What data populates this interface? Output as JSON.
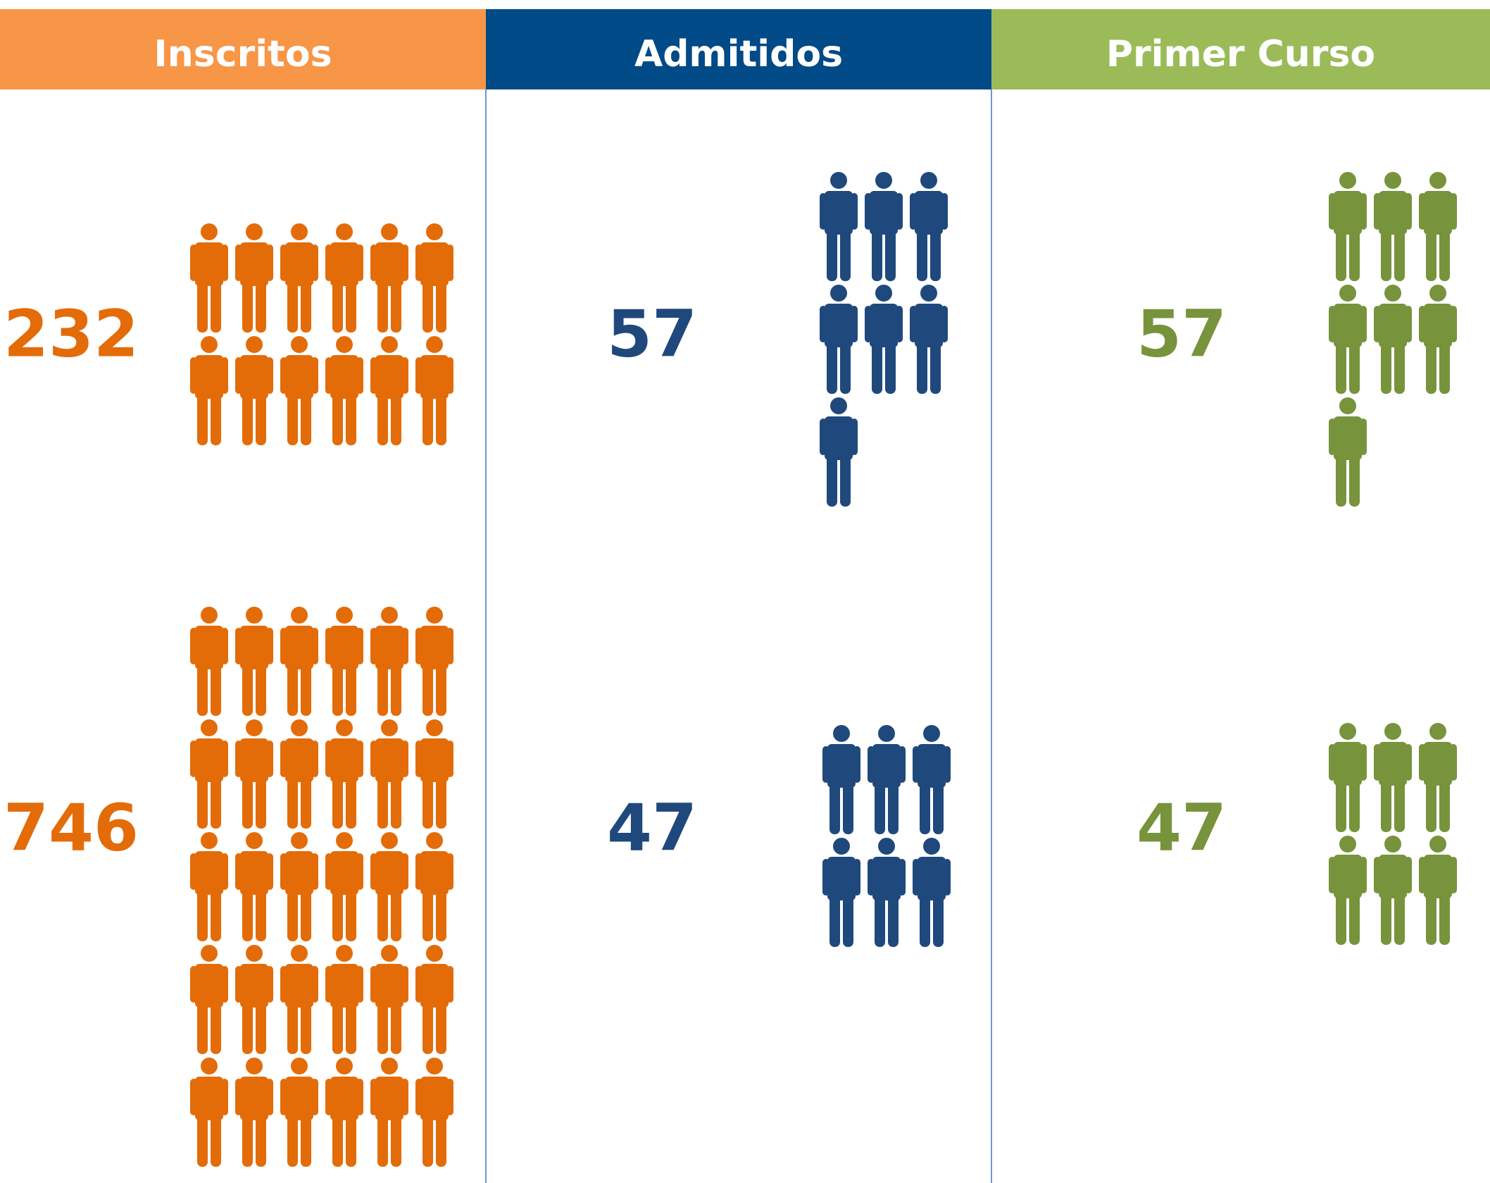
{
  "columns": [
    {
      "header": "Inscritos",
      "header_color": "#f79646",
      "color": "#e36c09",
      "values": [
        232,
        746
      ],
      "icons": [
        12,
        30
      ]
    },
    {
      "header": "Admitidos",
      "header_color": "#004a87",
      "color": "#1f497d",
      "values": [
        57,
        47
      ],
      "icons": [
        7,
        6
      ]
    },
    {
      "header": "Primer Curso",
      "header_color": "#9bbb59",
      "color": "#77933c",
      "values": [
        57,
        47
      ],
      "icons": [
        7,
        6
      ]
    }
  ]
}
